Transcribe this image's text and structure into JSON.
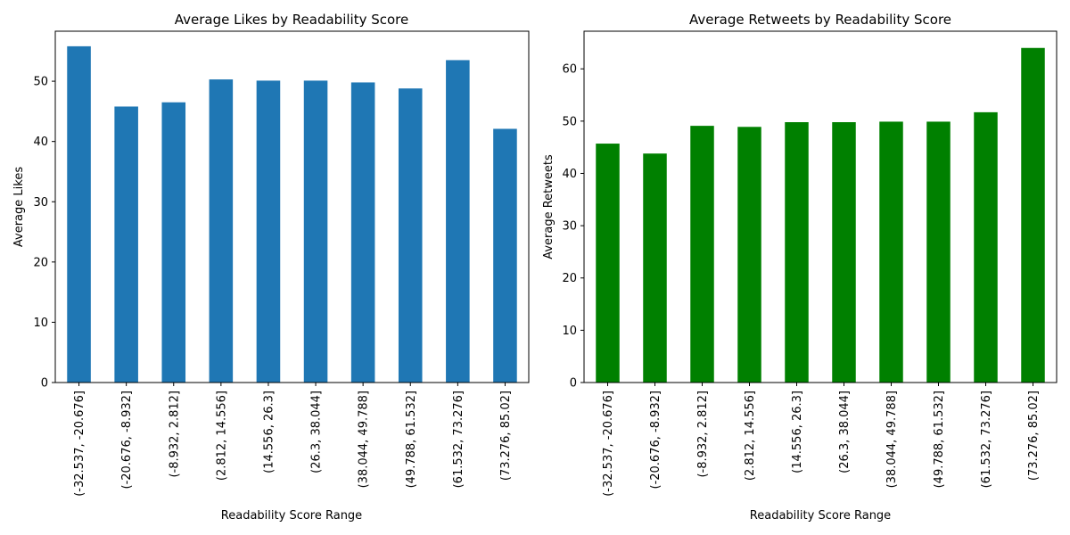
{
  "chart_data": [
    {
      "type": "bar",
      "title": "Average Likes by Readability Score",
      "xlabel": "Readability Score Range",
      "ylabel": "Average Likes",
      "categories": [
        "(-32.537, -20.676]",
        "(-20.676, -8.932]",
        "(-8.932, 2.812]",
        "(2.812, 14.556]",
        "(14.556, 26.3]",
        "(26.3, 38.044]",
        "(38.044, 49.788]",
        "(49.788, 61.532]",
        "(61.532, 73.276]",
        "(73.276, 85.02]"
      ],
      "values": [
        55.8,
        45.8,
        46.5,
        50.3,
        50.1,
        50.1,
        49.8,
        48.8,
        53.5,
        42.1
      ],
      "ylim": [
        0,
        58.3
      ],
      "yticks": [
        0,
        10,
        20,
        30,
        40,
        50
      ],
      "color": "#1f77b4",
      "grid": false,
      "legend": "none"
    },
    {
      "type": "bar",
      "title": "Average Retweets by Readability Score",
      "xlabel": "Readability Score Range",
      "ylabel": "Average Retweets",
      "categories": [
        "(-32.537, -20.676]",
        "(-20.676, -8.932]",
        "(-8.932, 2.812]",
        "(2.812, 14.556]",
        "(14.556, 26.3]",
        "(26.3, 38.044]",
        "(38.044, 49.788]",
        "(49.788, 61.532]",
        "(61.532, 73.276]",
        "(73.276, 85.02]"
      ],
      "values": [
        45.7,
        43.8,
        49.1,
        48.9,
        49.8,
        49.8,
        49.9,
        49.9,
        51.7,
        64.0
      ],
      "ylim": [
        0,
        67.2
      ],
      "yticks": [
        0,
        10,
        20,
        30,
        40,
        50,
        60
      ],
      "color": "#008000",
      "grid": false,
      "legend": "none"
    }
  ]
}
